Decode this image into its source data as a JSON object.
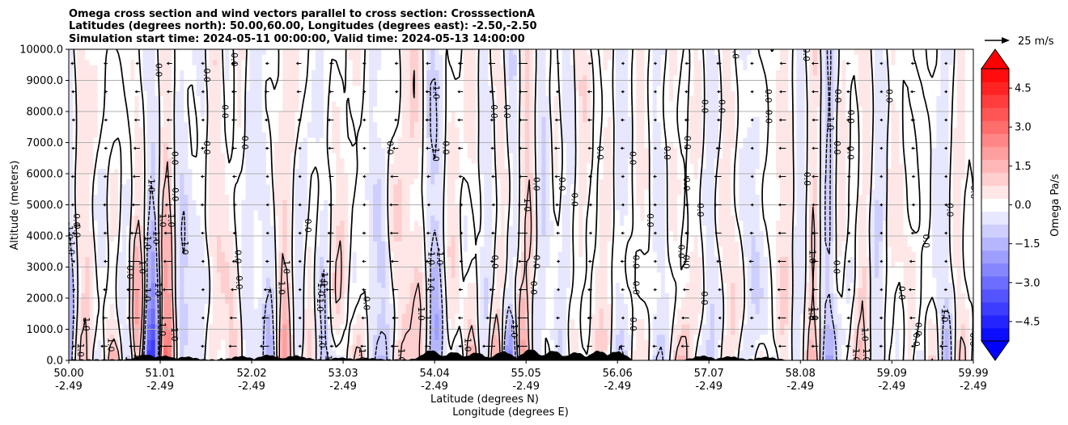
{
  "chart_data": {
    "type": "heatmap",
    "title_lines": [
      "Omega cross section and wind vectors parallel to cross section: CrosssectionA",
      "Latitudes (degrees north): 50.00,60.00, Longitudes (degrees east): -2.50,-2.50",
      "Simulation start time: 2024-05-11 00:00:00, Valid time: 2024-05-13 14:00:00"
    ],
    "ylabel": "Altitude (meters)",
    "xlabel_lines": [
      "Latitude (degrees N)",
      "Longitude (degrees E)"
    ],
    "ylim": [
      0,
      10000
    ],
    "xlim": [
      50.0,
      59.99
    ],
    "y_ticks": [
      0,
      1000,
      2000,
      3000,
      4000,
      5000,
      6000,
      7000,
      8000,
      9000,
      10000
    ],
    "y_tick_labels": [
      "0.0",
      "1000.0",
      "2000.0",
      "3000.0",
      "4000.0",
      "5000.0",
      "6000.0",
      "7000.0",
      "8000.0",
      "9000.0",
      "10000.0"
    ],
    "x_ticks": [
      {
        "lat": 50.0,
        "lat_label": "50.00",
        "lon_label": "-2.49"
      },
      {
        "lat": 51.01,
        "lat_label": "51.01",
        "lon_label": "-2.49"
      },
      {
        "lat": 52.02,
        "lat_label": "52.02",
        "lon_label": "-2.49"
      },
      {
        "lat": 53.03,
        "lat_label": "53.03",
        "lon_label": "-2.49"
      },
      {
        "lat": 54.04,
        "lat_label": "54.04",
        "lon_label": "-2.49"
      },
      {
        "lat": 55.05,
        "lat_label": "55.05",
        "lon_label": "-2.49"
      },
      {
        "lat": 56.06,
        "lat_label": "56.06",
        "lon_label": "-2.49"
      },
      {
        "lat": 57.07,
        "lat_label": "57.07",
        "lon_label": "-2.49"
      },
      {
        "lat": 58.08,
        "lat_label": "58.08",
        "lon_label": "-2.49"
      },
      {
        "lat": 59.09,
        "lat_label": "59.09",
        "lon_label": "-2.49"
      },
      {
        "lat": 59.99,
        "lat_label": "59.99",
        "lon_label": "-2.49"
      }
    ],
    "grid": "horizontal",
    "colorbar": {
      "label": "Omega Pa/s",
      "range": [
        -5.25,
        5.25
      ],
      "ticks": [
        4.5,
        3.0,
        1.5,
        0.0,
        -1.5,
        -3.0,
        -4.5
      ],
      "tick_labels": [
        "4.5",
        "3.0",
        "1.5",
        "0.0",
        "−1.5",
        "−3.0",
        "−4.5"
      ],
      "levels": 21,
      "extend": "both",
      "colormap": "bwr"
    },
    "contour_levels": [
      -1.0,
      0.0,
      1.0
    ],
    "contour_label_texts": {
      "neg": "-1.0",
      "zero": "0.0",
      "pos": "1.0"
    },
    "vector_key": {
      "label": "25 m/s",
      "speed": 25
    },
    "terrain_peaks": [
      {
        "lat": 50.85,
        "height": 160
      },
      {
        "lat": 51.05,
        "height": 120
      },
      {
        "lat": 51.3,
        "height": 90
      },
      {
        "lat": 51.9,
        "height": 110
      },
      {
        "lat": 52.2,
        "height": 150
      },
      {
        "lat": 52.5,
        "height": 130
      },
      {
        "lat": 53.0,
        "height": 60
      },
      {
        "lat": 53.3,
        "height": 50
      },
      {
        "lat": 54.0,
        "height": 300
      },
      {
        "lat": 54.25,
        "height": 240
      },
      {
        "lat": 54.5,
        "height": 220
      },
      {
        "lat": 54.8,
        "height": 260
      },
      {
        "lat": 55.1,
        "height": 330
      },
      {
        "lat": 55.35,
        "height": 280
      },
      {
        "lat": 55.6,
        "height": 230
      },
      {
        "lat": 55.85,
        "height": 280
      },
      {
        "lat": 56.05,
        "height": 260
      },
      {
        "lat": 57.0,
        "height": 120
      },
      {
        "lat": 57.3,
        "height": 100
      },
      {
        "lat": 57.7,
        "height": 80
      }
    ],
    "colors": {
      "negative_max": "#0000ff",
      "positive_max": "#ff0000",
      "neutral": "#ffffff",
      "contour": "#000000",
      "terrain": "#000000",
      "grid": "#b0b0b0"
    }
  }
}
